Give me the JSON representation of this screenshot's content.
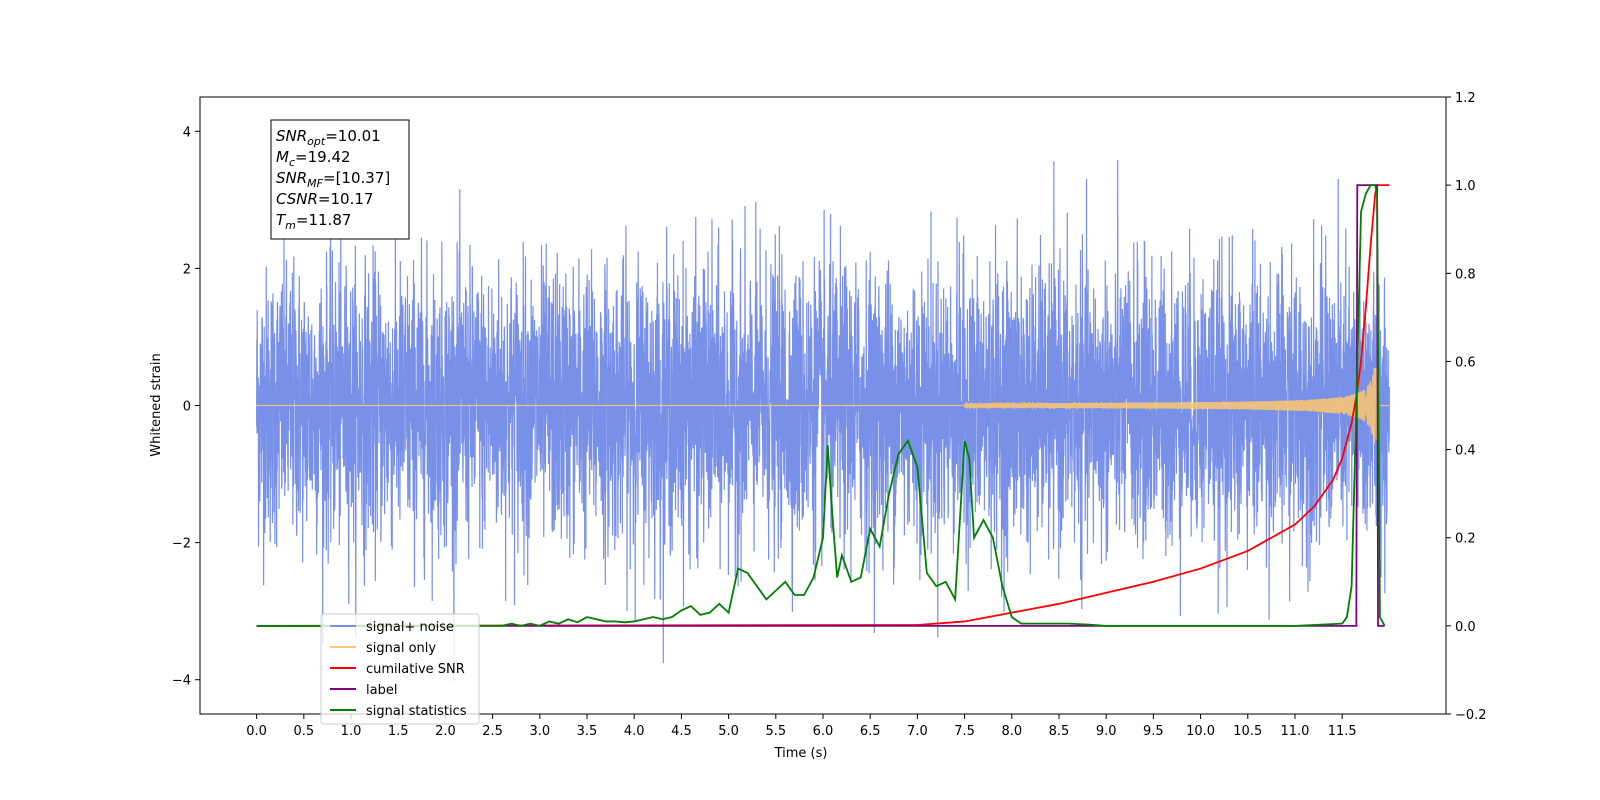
{
  "chart_data": {
    "type": "line",
    "xlabel": "Time (s)",
    "ylabel": "Whitened strain",
    "xlim": [
      -0.6,
      12.6
    ],
    "ylim": [
      -4.5,
      4.5
    ],
    "y2lim": [
      -0.2,
      1.2
    ],
    "xticks": [
      "0.0",
      "0.5",
      "1.0",
      "1.5",
      "2.0",
      "2.5",
      "3.0",
      "3.5",
      "4.0",
      "4.5",
      "5.0",
      "5.5",
      "6.0",
      "6.5",
      "7.0",
      "7.5",
      "8.0",
      "8.5",
      "9.0",
      "9.5",
      "10.0",
      "10.5",
      "11.0",
      "11.5"
    ],
    "yticks": [
      "4",
      "2",
      "0",
      "−2",
      "−4"
    ],
    "yticks_values": [
      4,
      2,
      0,
      -2,
      -4
    ],
    "y2ticks": [
      "1.2",
      "1.0",
      "0.8",
      "0.6",
      "0.4",
      "0.2",
      "0.0",
      "−0.2"
    ],
    "y2ticks_values": [
      1.2,
      1.0,
      0.8,
      0.6,
      0.4,
      0.2,
      0.0,
      -0.2
    ],
    "annotation": [
      {
        "main": "SNR",
        "sub": "opt",
        "value": "=10.01"
      },
      {
        "main": "M",
        "sub": "c",
        "value": "=19.42"
      },
      {
        "main": "SNR",
        "sub": "MF",
        "value": "=[10.37]"
      },
      {
        "main": "CSNR",
        "sub": "",
        "value": "=10.17"
      },
      {
        "main": "T",
        "sub": "m",
        "value": "=11.87"
      }
    ],
    "legend": [
      {
        "label": "signal+ noise",
        "color": "#7890e8"
      },
      {
        "label": "signal only",
        "color": "#ffc870"
      },
      {
        "label": "cumilative SNR",
        "color": "#ff0000"
      },
      {
        "label": "label",
        "color": "#800080"
      },
      {
        "label": "signal statistics",
        "color": "#008000"
      }
    ],
    "legend_placement": "lower-left",
    "series": [
      {
        "name": "signal+ noise",
        "axis": "left",
        "color": "#7890e8",
        "description": "white noise, amplitude about ±2.5 with peaks near ±4, from 0 to 12 s",
        "x_range": [
          0,
          12
        ],
        "sigma": 1.0
      },
      {
        "name": "signal only",
        "axis": "left",
        "color": "#ffc870",
        "description": "chirp growing to amplitude ~0.5 at 11.9 s then stopping",
        "x_range": [
          0,
          12
        ],
        "merger_time": 11.87
      },
      {
        "name": "cumilative SNR",
        "axis": "right",
        "x": [
          0,
          7.0,
          7.5,
          8.0,
          8.5,
          9.0,
          9.5,
          10.0,
          10.5,
          11.0,
          11.2,
          11.4,
          11.5,
          11.6,
          11.65,
          11.7,
          11.75,
          11.8,
          11.85,
          11.87,
          12.0
        ],
        "y": [
          0,
          0.002,
          0.01,
          0.03,
          0.05,
          0.075,
          0.1,
          0.13,
          0.17,
          0.23,
          0.27,
          0.33,
          0.38,
          0.46,
          0.52,
          0.6,
          0.72,
          0.86,
          0.98,
          1.0,
          1.0
        ]
      },
      {
        "name": "label",
        "axis": "right",
        "x": [
          0,
          11.65,
          11.66,
          11.87,
          11.88,
          11.95
        ],
        "y": [
          0,
          0,
          1.0,
          1.0,
          0,
          0
        ]
      },
      {
        "name": "signal statistics",
        "axis": "right",
        "x": [
          0,
          2.6,
          2.7,
          2.8,
          2.9,
          3.0,
          3.1,
          3.2,
          3.3,
          3.4,
          3.5,
          3.6,
          3.7,
          3.8,
          3.9,
          4.0,
          4.1,
          4.2,
          4.3,
          4.4,
          4.5,
          4.6,
          4.7,
          4.8,
          4.9,
          5.0,
          5.1,
          5.2,
          5.3,
          5.4,
          5.5,
          5.6,
          5.7,
          5.8,
          5.9,
          6.0,
          6.05,
          6.1,
          6.15,
          6.2,
          6.3,
          6.4,
          6.5,
          6.6,
          6.7,
          6.8,
          6.9,
          7.0,
          7.1,
          7.2,
          7.3,
          7.4,
          7.5,
          7.55,
          7.6,
          7.7,
          7.8,
          7.9,
          8.0,
          8.1,
          8.3,
          8.5,
          8.6,
          8.7,
          8.8,
          9.0,
          10.5,
          11.0,
          11.5,
          11.55,
          11.6,
          11.65,
          11.7,
          11.75,
          11.8,
          11.85,
          11.87,
          11.9,
          11.95
        ],
        "y": [
          0,
          0,
          0.005,
          0,
          0.005,
          0,
          0.01,
          0.005,
          0.015,
          0.008,
          0.02,
          0.015,
          0.01,
          0.01,
          0.008,
          0.01,
          0.015,
          0.02,
          0.015,
          0.02,
          0.035,
          0.045,
          0.025,
          0.03,
          0.05,
          0.03,
          0.13,
          0.12,
          0.09,
          0.06,
          0.08,
          0.1,
          0.07,
          0.07,
          0.11,
          0.2,
          0.41,
          0.25,
          0.11,
          0.16,
          0.1,
          0.11,
          0.22,
          0.18,
          0.3,
          0.39,
          0.42,
          0.36,
          0.12,
          0.09,
          0.1,
          0.06,
          0.42,
          0.38,
          0.2,
          0.24,
          0.2,
          0.09,
          0.02,
          0.005,
          0.005,
          0.005,
          0.005,
          0.004,
          0.003,
          0.0,
          0,
          0,
          0.005,
          0.02,
          0.09,
          0.5,
          0.94,
          0.98,
          1.0,
          1.0,
          0.98,
          0.02,
          0
        ]
      }
    ]
  }
}
